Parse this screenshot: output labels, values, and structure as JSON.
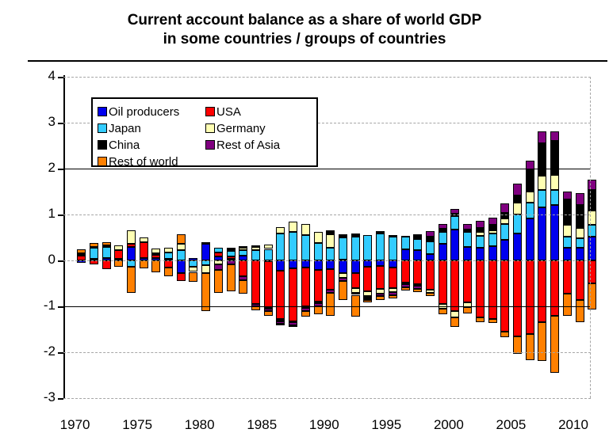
{
  "title": {
    "line1": "Current account balance as a share of world GDP",
    "line2": "in some countries / groups of countries"
  },
  "chart_data": {
    "type": "bar",
    "stacked": true,
    "title": "Current account balance as a share of world GDP in some countries / groups of countries",
    "xlabel": "",
    "ylabel": "",
    "ylim": [
      -3,
      4
    ],
    "yticks": [
      4,
      3,
      2,
      1,
      0,
      -1,
      -2,
      -3
    ],
    "solid_gridlines_at": [
      2,
      -1
    ],
    "dashed_gridlines_at": [
      4,
      3,
      1,
      0,
      -2,
      -3
    ],
    "xtick_labels": [
      "1970",
      "1975",
      "1980",
      "1985",
      "1990",
      "1995",
      "2000",
      "2005",
      "2010"
    ],
    "legend_position": "top-left-inside",
    "years": [
      1970,
      1971,
      1972,
      1973,
      1974,
      1975,
      1976,
      1977,
      1978,
      1979,
      1980,
      1981,
      1982,
      1983,
      1984,
      1985,
      1986,
      1987,
      1988,
      1989,
      1990,
      1991,
      1992,
      1993,
      1994,
      1995,
      1996,
      1997,
      1998,
      1999,
      2000,
      2001,
      2002,
      2003,
      2004,
      2005,
      2006,
      2007,
      2008,
      2009,
      2010,
      2011
    ],
    "units": "% of world GDP",
    "series": [
      {
        "name": "Oil producers",
        "color": "#0000ee",
        "pattern": "solid",
        "values": [
          -0.05,
          0.03,
          0.05,
          0.04,
          0.3,
          0.05,
          0.06,
          0.03,
          -0.28,
          0.06,
          0.36,
          0.09,
          0.04,
          0.1,
          0.0,
          -0.02,
          -0.22,
          -0.17,
          -0.15,
          -0.2,
          -0.19,
          -0.28,
          -0.28,
          -0.13,
          -0.12,
          -0.15,
          0.24,
          0.22,
          0.13,
          0.36,
          0.68,
          0.3,
          0.27,
          0.31,
          0.45,
          0.59,
          0.91,
          1.15,
          1.21,
          0.27,
          0.27,
          0.51
        ]
      },
      {
        "name": "USA",
        "color": "#ff0000",
        "pattern": "solid",
        "values": [
          0.1,
          -0.08,
          -0.19,
          0.18,
          0.06,
          0.35,
          0.06,
          -0.16,
          -0.17,
          0.0,
          0.03,
          0.08,
          0.04,
          -0.34,
          -0.95,
          -1.0,
          -1.05,
          -1.15,
          -0.85,
          -0.7,
          -0.44,
          0.02,
          -0.32,
          -0.54,
          -0.5,
          -0.45,
          -0.48,
          -0.51,
          -0.63,
          -0.95,
          -1.1,
          -0.92,
          -1.24,
          -1.27,
          -1.56,
          -1.65,
          -1.61,
          -1.34,
          -1.21,
          -0.72,
          -0.86,
          -0.5
        ]
      },
      {
        "name": "Japan",
        "color": "#33ccff",
        "pattern": "solid",
        "values": [
          0.04,
          0.24,
          0.25,
          0.0,
          -0.14,
          0.0,
          0.04,
          0.15,
          0.22,
          -0.13,
          -0.11,
          0.1,
          0.12,
          0.12,
          0.22,
          0.25,
          0.58,
          0.62,
          0.55,
          0.38,
          0.27,
          0.48,
          0.52,
          0.55,
          0.58,
          0.52,
          0.27,
          0.25,
          0.29,
          0.26,
          0.28,
          0.32,
          0.27,
          0.27,
          0.35,
          0.41,
          0.35,
          0.38,
          0.33,
          0.24,
          0.21,
          0.26
        ]
      },
      {
        "name": "Germany",
        "color": "#ffffb3",
        "pattern": "solid",
        "values": [
          0.02,
          0.02,
          0.03,
          0.11,
          0.3,
          0.1,
          0.1,
          0.09,
          0.14,
          -0.12,
          -0.17,
          -0.09,
          0.04,
          0.05,
          0.07,
          0.09,
          0.15,
          0.22,
          0.24,
          0.24,
          0.3,
          -0.1,
          -0.1,
          -0.1,
          -0.1,
          -0.09,
          -0.04,
          -0.05,
          -0.07,
          -0.1,
          -0.14,
          -0.09,
          0.08,
          0.08,
          0.11,
          0.26,
          0.24,
          0.32,
          0.32,
          0.26,
          0.23,
          0.32
        ]
      },
      {
        "name": "China",
        "color": "#000000",
        "pattern": "solid",
        "values": [
          0,
          0,
          0,
          0,
          0,
          0,
          0,
          0,
          0,
          0,
          0,
          0,
          0.03,
          0.04,
          0.04,
          -0.04,
          -0.06,
          -0.02,
          -0.03,
          -0.03,
          0.08,
          0.07,
          0.06,
          -0.05,
          0.06,
          0.04,
          0.02,
          0.1,
          0.1,
          0.07,
          0.06,
          0.06,
          0.09,
          0.11,
          0.12,
          0.15,
          0.49,
          0.7,
          0.75,
          0.55,
          0.49,
          0.44
        ]
      },
      {
        "name": "Rest of Asia",
        "color": "#800080",
        "pattern": "dotted",
        "values": [
          0,
          0,
          0,
          0,
          0,
          0,
          0,
          0,
          0,
          0,
          0,
          -0.11,
          -0.08,
          -0.09,
          -0.05,
          -0.04,
          -0.05,
          -0.08,
          -0.07,
          -0.07,
          -0.07,
          -0.06,
          -0.05,
          -0.04,
          -0.05,
          -0.07,
          -0.07,
          -0.06,
          0.11,
          0.1,
          0.1,
          0.12,
          0.15,
          0.16,
          0.21,
          0.26,
          0.18,
          0.26,
          0.2,
          0.18,
          0.26,
          0.23
        ]
      },
      {
        "name": "Rest of world",
        "color": "#ff8000",
        "pattern": "dotted",
        "values": [
          0.08,
          0.09,
          0.06,
          -0.13,
          -0.56,
          -0.18,
          -0.25,
          -0.18,
          0.21,
          -0.21,
          -0.83,
          -0.5,
          -0.6,
          -0.29,
          -0.09,
          -0.1,
          -0.02,
          -0.02,
          -0.12,
          -0.18,
          -0.51,
          -0.42,
          -0.48,
          -0.06,
          -0.09,
          -0.07,
          -0.06,
          -0.07,
          -0.08,
          -0.13,
          -0.21,
          -0.14,
          -0.1,
          -0.09,
          -0.11,
          -0.39,
          -0.56,
          -0.85,
          -1.23,
          -0.48,
          -0.48,
          -0.57
        ]
      }
    ]
  },
  "legend": {
    "columns": [
      [
        "Oil producers",
        "Japan",
        "China",
        "Rest of world"
      ],
      [
        "USA",
        "Germany",
        "Rest of Asia"
      ]
    ]
  }
}
